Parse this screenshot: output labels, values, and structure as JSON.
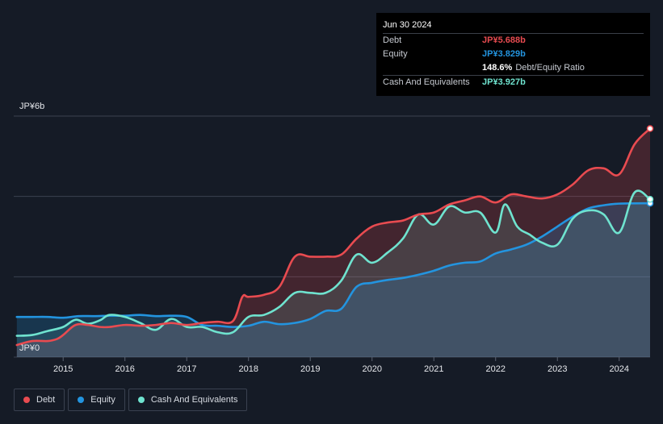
{
  "tooltip": {
    "date": "Jun 30 2024",
    "debt_label": "Debt",
    "debt_value": "JP¥5.688b",
    "equity_label": "Equity",
    "equity_value": "JP¥3.829b",
    "ratio_value": "148.6%",
    "ratio_label": "Debt/Equity Ratio",
    "cash_label": "Cash And Equivalents",
    "cash_value": "JP¥3.927b"
  },
  "legend": [
    {
      "label": "Debt",
      "color": "#e84b50"
    },
    {
      "label": "Equity",
      "color": "#2394df"
    },
    {
      "label": "Cash And Equivalents",
      "color": "#6fe3cf"
    }
  ],
  "colors": {
    "debt": "#e84b50",
    "equity": "#2394df",
    "cash": "#6fe3cf",
    "background": "#151b26",
    "grid": "#3a4150"
  },
  "chart_data": {
    "type": "area",
    "title": "",
    "xlabel": "",
    "ylabel": "",
    "y_axis_labels": [
      "JP¥6b",
      "JP¥0"
    ],
    "x_ticks": [
      "2015",
      "2016",
      "2017",
      "2018",
      "2019",
      "2020",
      "2021",
      "2022",
      "2023",
      "2024"
    ],
    "xlim": [
      2014.2,
      2024.5
    ],
    "ylim": [
      0,
      6
    ],
    "gridlines": [
      0,
      2,
      4,
      6
    ],
    "series": [
      {
        "name": "Debt",
        "color": "#e84b50",
        "points": [
          [
            2014.25,
            0.3
          ],
          [
            2014.5,
            0.4
          ],
          [
            2014.75,
            0.4
          ],
          [
            2014.9,
            0.45
          ],
          [
            2015.0,
            0.55
          ],
          [
            2015.2,
            0.8
          ],
          [
            2015.4,
            0.8
          ],
          [
            2015.6,
            0.75
          ],
          [
            2015.75,
            0.75
          ],
          [
            2016.0,
            0.8
          ],
          [
            2016.25,
            0.78
          ],
          [
            2016.5,
            0.8
          ],
          [
            2016.75,
            0.85
          ],
          [
            2017.0,
            0.8
          ],
          [
            2017.25,
            0.85
          ],
          [
            2017.5,
            0.88
          ],
          [
            2017.75,
            0.9
          ],
          [
            2017.9,
            1.5
          ],
          [
            2018.0,
            1.5
          ],
          [
            2018.25,
            1.55
          ],
          [
            2018.5,
            1.75
          ],
          [
            2018.75,
            2.5
          ],
          [
            2019.0,
            2.5
          ],
          [
            2019.25,
            2.5
          ],
          [
            2019.5,
            2.55
          ],
          [
            2019.75,
            2.95
          ],
          [
            2020.0,
            3.25
          ],
          [
            2020.25,
            3.35
          ],
          [
            2020.5,
            3.4
          ],
          [
            2020.75,
            3.55
          ],
          [
            2021.0,
            3.6
          ],
          [
            2021.25,
            3.8
          ],
          [
            2021.5,
            3.9
          ],
          [
            2021.75,
            4.0
          ],
          [
            2022.0,
            3.85
          ],
          [
            2022.25,
            4.05
          ],
          [
            2022.5,
            4.0
          ],
          [
            2022.75,
            3.95
          ],
          [
            2023.0,
            4.05
          ],
          [
            2023.25,
            4.3
          ],
          [
            2023.5,
            4.65
          ],
          [
            2023.75,
            4.7
          ],
          [
            2024.0,
            4.55
          ],
          [
            2024.25,
            5.3
          ],
          [
            2024.5,
            5.688
          ]
        ]
      },
      {
        "name": "Equity",
        "color": "#2394df",
        "points": [
          [
            2014.25,
            1.0
          ],
          [
            2014.5,
            1.0
          ],
          [
            2014.75,
            1.0
          ],
          [
            2015.0,
            0.98
          ],
          [
            2015.25,
            1.02
          ],
          [
            2015.5,
            1.02
          ],
          [
            2015.75,
            1.03
          ],
          [
            2016.0,
            1.03
          ],
          [
            2016.25,
            1.05
          ],
          [
            2016.5,
            1.02
          ],
          [
            2016.75,
            1.03
          ],
          [
            2017.0,
            1.0
          ],
          [
            2017.25,
            0.8
          ],
          [
            2017.5,
            0.78
          ],
          [
            2017.75,
            0.75
          ],
          [
            2018.0,
            0.78
          ],
          [
            2018.25,
            0.88
          ],
          [
            2018.5,
            0.82
          ],
          [
            2018.75,
            0.85
          ],
          [
            2019.0,
            0.95
          ],
          [
            2019.25,
            1.15
          ],
          [
            2019.5,
            1.2
          ],
          [
            2019.75,
            1.75
          ],
          [
            2020.0,
            1.85
          ],
          [
            2020.25,
            1.92
          ],
          [
            2020.5,
            1.97
          ],
          [
            2020.75,
            2.05
          ],
          [
            2021.0,
            2.15
          ],
          [
            2021.25,
            2.28
          ],
          [
            2021.5,
            2.35
          ],
          [
            2021.75,
            2.38
          ],
          [
            2022.0,
            2.58
          ],
          [
            2022.25,
            2.68
          ],
          [
            2022.5,
            2.8
          ],
          [
            2022.75,
            3.0
          ],
          [
            2023.0,
            3.25
          ],
          [
            2023.25,
            3.5
          ],
          [
            2023.5,
            3.7
          ],
          [
            2023.75,
            3.78
          ],
          [
            2024.0,
            3.82
          ],
          [
            2024.5,
            3.829
          ]
        ]
      },
      {
        "name": "Cash And Equivalents",
        "color": "#6fe3cf",
        "points": [
          [
            2014.25,
            0.53
          ],
          [
            2014.5,
            0.55
          ],
          [
            2014.75,
            0.65
          ],
          [
            2015.0,
            0.75
          ],
          [
            2015.2,
            0.93
          ],
          [
            2015.4,
            0.83
          ],
          [
            2015.6,
            0.92
          ],
          [
            2015.75,
            1.05
          ],
          [
            2016.0,
            1.0
          ],
          [
            2016.25,
            0.85
          ],
          [
            2016.5,
            0.68
          ],
          [
            2016.75,
            0.95
          ],
          [
            2017.0,
            0.75
          ],
          [
            2017.25,
            0.75
          ],
          [
            2017.5,
            0.62
          ],
          [
            2017.75,
            0.62
          ],
          [
            2018.0,
            1.0
          ],
          [
            2018.25,
            1.05
          ],
          [
            2018.5,
            1.25
          ],
          [
            2018.75,
            1.6
          ],
          [
            2019.0,
            1.6
          ],
          [
            2019.25,
            1.6
          ],
          [
            2019.5,
            1.9
          ],
          [
            2019.75,
            2.55
          ],
          [
            2020.0,
            2.35
          ],
          [
            2020.25,
            2.6
          ],
          [
            2020.5,
            2.95
          ],
          [
            2020.75,
            3.55
          ],
          [
            2021.0,
            3.3
          ],
          [
            2021.25,
            3.75
          ],
          [
            2021.5,
            3.6
          ],
          [
            2021.75,
            3.6
          ],
          [
            2022.0,
            3.1
          ],
          [
            2022.15,
            3.8
          ],
          [
            2022.35,
            3.25
          ],
          [
            2022.55,
            3.05
          ],
          [
            2022.75,
            2.85
          ],
          [
            2023.0,
            2.8
          ],
          [
            2023.25,
            3.45
          ],
          [
            2023.5,
            3.65
          ],
          [
            2023.75,
            3.55
          ],
          [
            2024.0,
            3.1
          ],
          [
            2024.25,
            4.1
          ],
          [
            2024.5,
            3.927
          ]
        ]
      }
    ]
  }
}
